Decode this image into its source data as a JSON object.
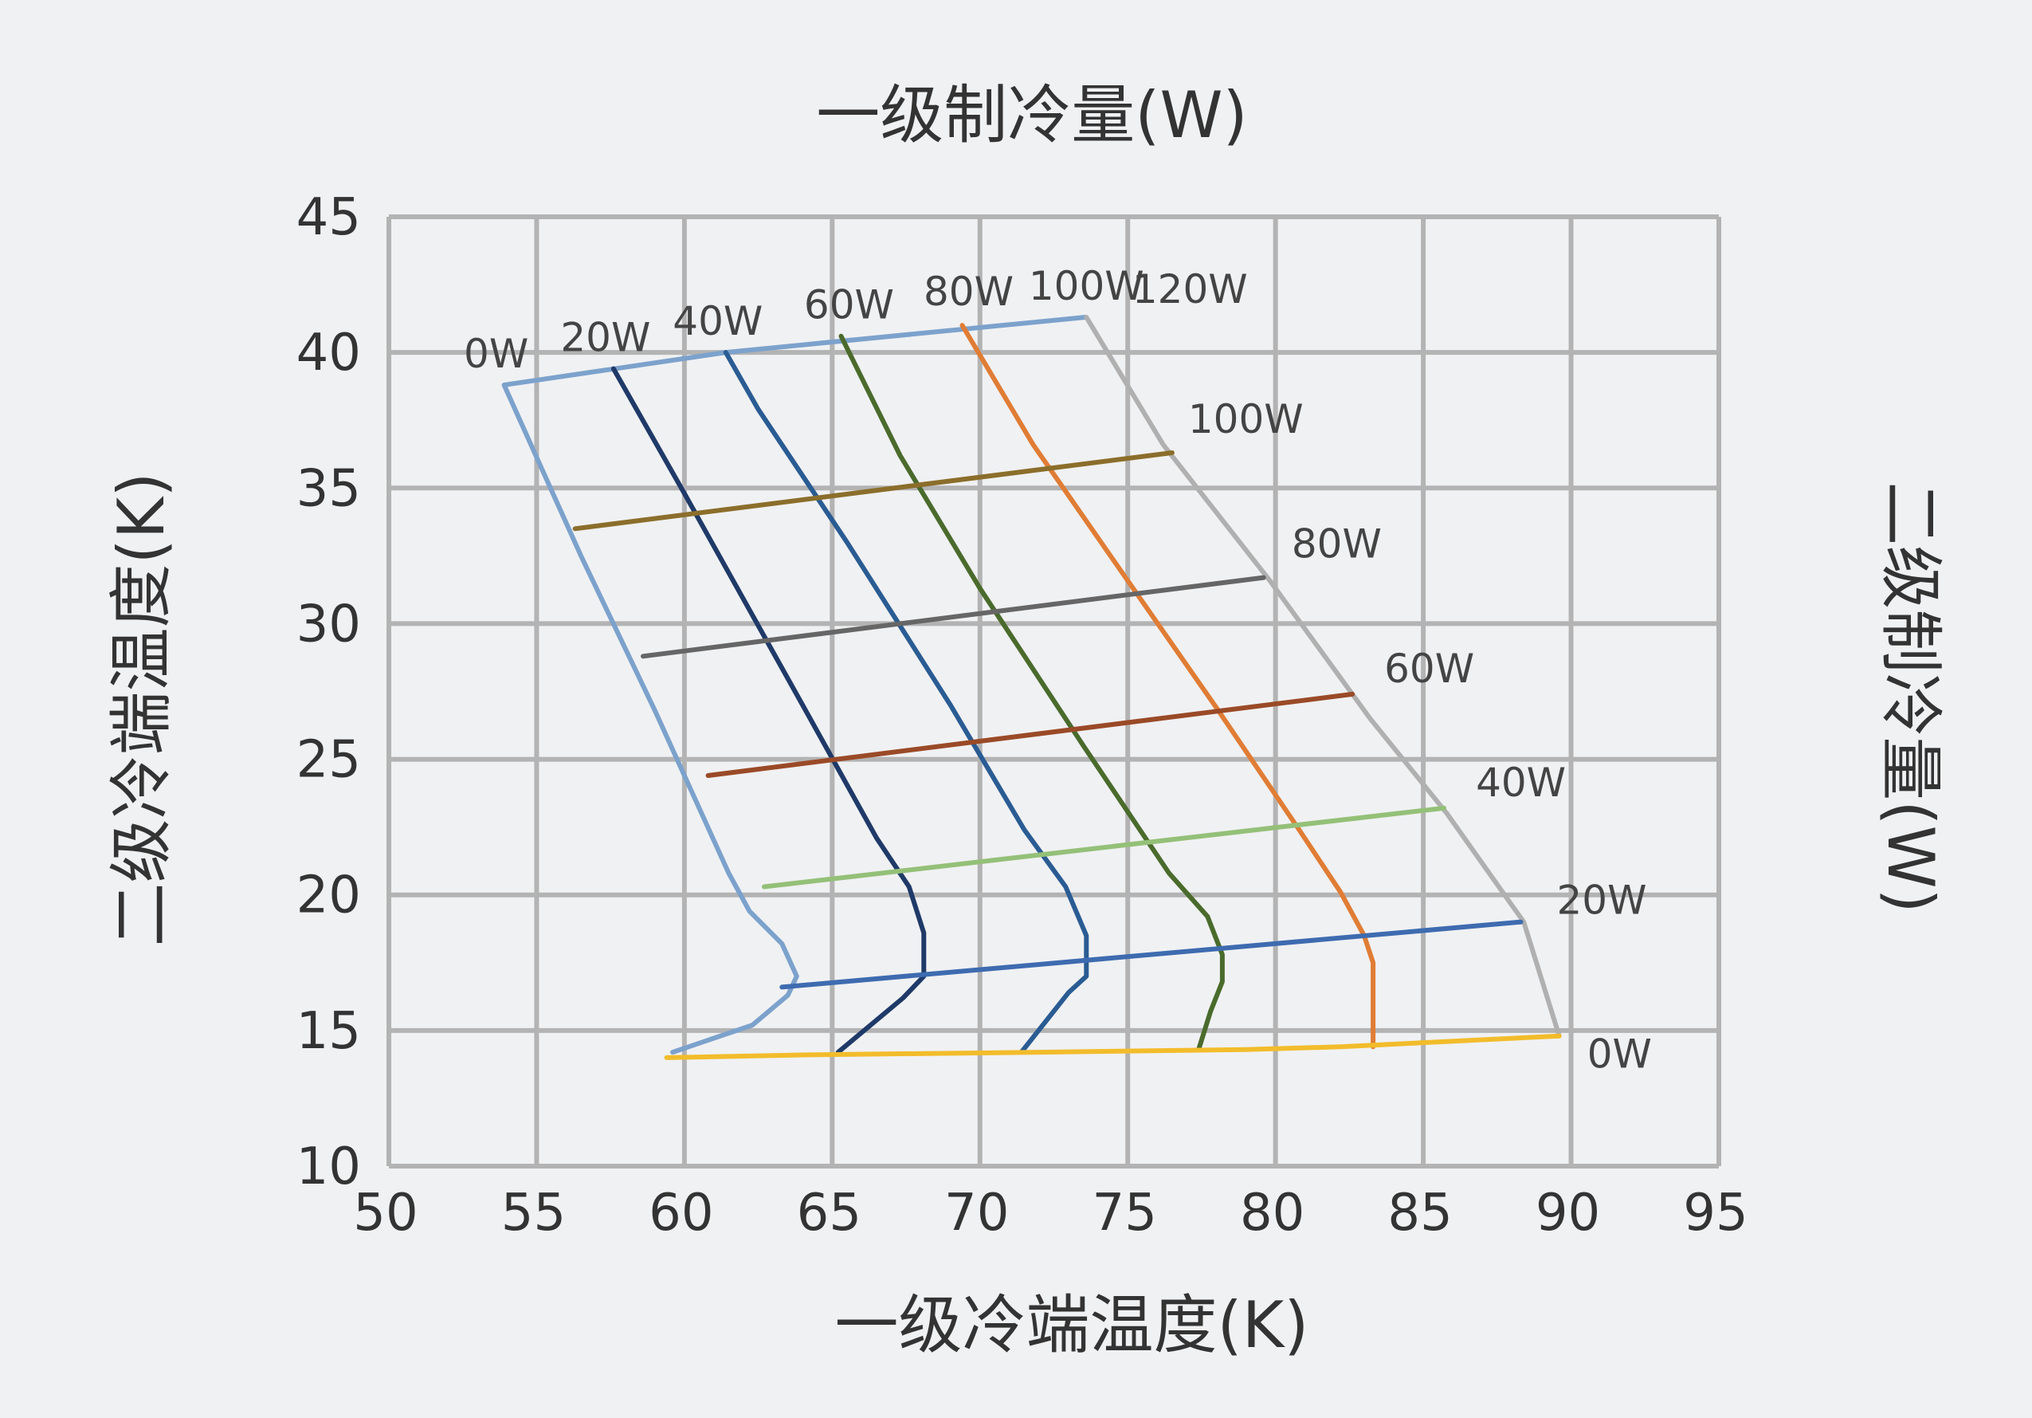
{
  "chart_data": {
    "type": "line",
    "title": "一级制冷量(W)",
    "xlabel": "一级冷端温度(K)",
    "ylabel": "二级冷端温度(K)",
    "y2label": "二级制冷量(W)",
    "xlim": [
      50,
      95
    ],
    "ylim": [
      10,
      45
    ],
    "xticks": [
      50,
      55,
      60,
      65,
      70,
      75,
      80,
      85,
      90,
      95
    ],
    "yticks": [
      10,
      15,
      20,
      25,
      30,
      35,
      40,
      45
    ],
    "grid": true,
    "stage1_series": [
      {
        "name": "0W",
        "color": "#7ca2cc",
        "points": [
          [
            53.9,
            38.8
          ],
          [
            56.5,
            32.5
          ],
          [
            59.0,
            26.8
          ],
          [
            61.5,
            20.8
          ],
          [
            62.2,
            19.4
          ],
          [
            63.3,
            18.2
          ],
          [
            63.8,
            17.0
          ],
          [
            63.5,
            16.3
          ],
          [
            62.3,
            15.2
          ],
          [
            59.6,
            14.2
          ]
        ]
      },
      {
        "name": "20W",
        "color": "#1f3a68",
        "points": [
          [
            57.6,
            39.4
          ],
          [
            60.0,
            34.8
          ],
          [
            64.0,
            27.0
          ],
          [
            66.5,
            22.1
          ],
          [
            67.6,
            20.3
          ],
          [
            68.1,
            18.6
          ],
          [
            68.1,
            17.0
          ],
          [
            67.4,
            16.2
          ],
          [
            65.2,
            14.2
          ]
        ]
      },
      {
        "name": "40W",
        "color": "#2a5c93",
        "points": [
          [
            61.4,
            40.0
          ],
          [
            62.5,
            37.9
          ],
          [
            65.5,
            33.0
          ],
          [
            69.0,
            27.0
          ],
          [
            71.5,
            22.4
          ],
          [
            72.9,
            20.3
          ],
          [
            73.6,
            18.5
          ],
          [
            73.6,
            17.0
          ],
          [
            73.0,
            16.4
          ],
          [
            71.4,
            14.2
          ]
        ]
      },
      {
        "name": "60W",
        "color": "#4a6b2c",
        "points": [
          [
            65.3,
            40.6
          ],
          [
            67.3,
            36.2
          ],
          [
            70.0,
            31.3
          ],
          [
            73.5,
            25.5
          ],
          [
            76.4,
            20.8
          ],
          [
            77.7,
            19.2
          ],
          [
            78.2,
            17.8
          ],
          [
            78.2,
            16.8
          ],
          [
            77.8,
            15.7
          ],
          [
            77.4,
            14.3
          ]
        ]
      },
      {
        "name": "80W",
        "color": "#e07d35",
        "points": [
          [
            69.4,
            41.0
          ],
          [
            71.8,
            36.6
          ],
          [
            74.8,
            31.9
          ],
          [
            78.0,
            26.9
          ],
          [
            80.8,
            22.4
          ],
          [
            82.2,
            20.1
          ],
          [
            83.0,
            18.5
          ],
          [
            83.3,
            17.5
          ],
          [
            83.3,
            14.4
          ]
        ]
      },
      {
        "name": "100W",
        "color": "#b0b0b0",
        "points": [
          [
            73.6,
            41.3
          ]
        ]
      },
      {
        "name": "120W",
        "color": "#b0b0b0",
        "points": [
          [
            73.6,
            41.3
          ],
          [
            76.2,
            36.6
          ],
          [
            79.8,
            31.6
          ],
          [
            83.2,
            26.5
          ],
          [
            85.8,
            23.0
          ],
          [
            88.4,
            19.0
          ],
          [
            89.6,
            14.8
          ]
        ]
      }
    ],
    "stage2_series": [
      {
        "name": "100W",
        "color": "#8b6e2b",
        "points": [
          [
            56.3,
            33.5
          ],
          [
            76.5,
            36.3
          ]
        ]
      },
      {
        "name": "80W",
        "color": "#666666",
        "points": [
          [
            58.6,
            28.8
          ],
          [
            79.6,
            31.7
          ]
        ]
      },
      {
        "name": "60W",
        "color": "#9a4a27",
        "points": [
          [
            60.8,
            24.4
          ],
          [
            82.6,
            27.4
          ]
        ]
      },
      {
        "name": "40W",
        "color": "#94c078",
        "points": [
          [
            62.7,
            20.3
          ],
          [
            85.7,
            23.2
          ]
        ]
      },
      {
        "name": "20W",
        "color": "#3e6bb0",
        "points": [
          [
            63.3,
            16.6
          ],
          [
            88.3,
            19.0
          ]
        ]
      },
      {
        "name": "0W",
        "color": "#f2bc2b",
        "points": [
          [
            59.4,
            14.0
          ],
          [
            64.0,
            14.1
          ],
          [
            72.0,
            14.2
          ],
          [
            79.0,
            14.3
          ],
          [
            82.2,
            14.4
          ],
          [
            89.6,
            14.8
          ]
        ]
      }
    ],
    "stage1_boundary": {
      "color": "#7ca2cc",
      "points": [
        [
          53.9,
          38.8
        ],
        [
          61.4,
          40.0
        ],
        [
          73.6,
          41.3
        ]
      ]
    }
  }
}
